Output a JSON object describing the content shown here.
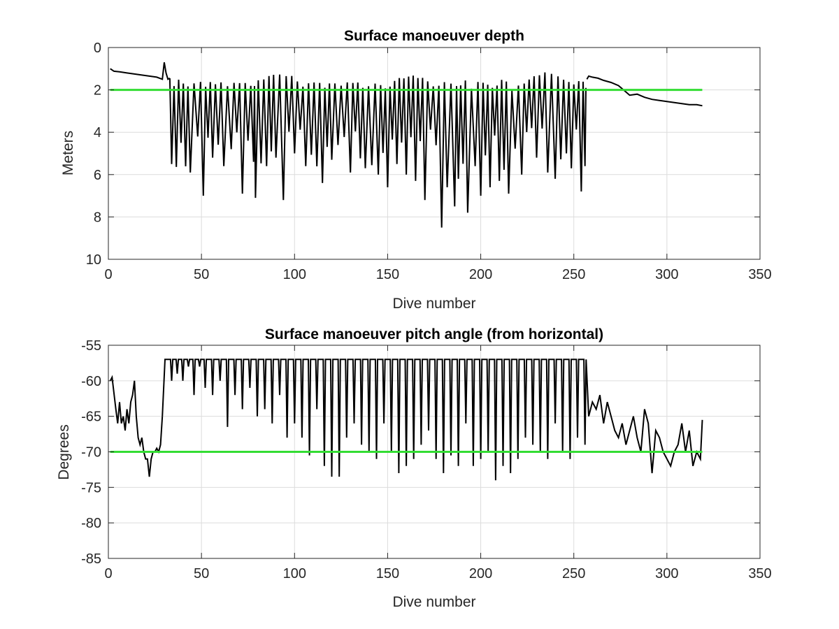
{
  "chart_data": [
    {
      "type": "line",
      "title": "Surface manoeuver depth",
      "xlabel": "Dive number",
      "ylabel": "Meters",
      "xlim": [
        0,
        350
      ],
      "ylim": [
        0,
        10
      ],
      "y_reversed": true,
      "grid": true,
      "xticks": [
        "0",
        "50",
        "100",
        "150",
        "200",
        "250",
        "300",
        "350"
      ],
      "yticks": [
        "0",
        "2",
        "4",
        "6",
        "8",
        "10"
      ],
      "threshold": {
        "value": 2,
        "x_range": [
          1,
          319
        ],
        "color": "#33dd33"
      },
      "series": [
        {
          "color": "#000000",
          "segment_1": {
            "x": [
              1,
              3,
              6,
              10,
              14,
              18,
              22,
              26,
              29,
              30,
              31,
              32,
              33
            ],
            "y": [
              1.0,
              1.12,
              1.15,
              1.2,
              1.25,
              1.3,
              1.35,
              1.4,
              1.5,
              0.7,
              1.2,
              1.5,
              1.45
            ]
          },
          "oscillation": {
            "x_start": 34,
            "x_end": 257,
            "approx_period": 3,
            "peaks_y": [
              1.6,
              1.5,
              1.6,
              1.8,
              1.6,
              1.5,
              1.7,
              1.6,
              1.5,
              1.6,
              1.7,
              1.6,
              1.5,
              1.6,
              1.8,
              1.6,
              1.5,
              1.4,
              1.3,
              1.2,
              1.1,
              1.2,
              1.3,
              1.5,
              1.6
            ],
            "troughs_y": [
              5.5,
              4.5,
              5.9,
              4.2,
              7.0,
              5.2,
              5.6,
              4.8,
              6.9,
              5.4,
              7.1,
              5.6,
              5.2,
              7.2,
              5.0,
              5.6,
              6.4,
              5.3,
              5.9,
              5.7,
              6.0,
              6.6,
              5.5,
              6.0,
              6.3,
              7.2,
              8.5,
              6.6,
              7.5,
              6.2,
              7.8,
              5.6,
              7.0,
              6.6,
              6.3,
              6.9,
              6.0,
              5.2,
              5.9,
              6.2,
              5.0,
              6.8,
              5.6
            ],
            "trough_x": [
              34,
              39,
              44,
              48,
              51,
              56,
              62,
              66,
              72,
              78,
              79,
              85,
              90,
              94,
              100,
              106,
              115,
              120,
              130,
              138,
              145,
              150,
              155,
              160,
              165,
              170,
              179,
              182,
              186,
              188,
              193,
              197,
              200,
              205,
              210,
              215,
              222,
              230,
              236,
              240,
              246,
              254,
              256
            ]
          },
          "segment_2": {
            "x": [
              257,
              258,
              260,
              263,
              266,
              270,
              274,
              278,
              280,
              284,
              288,
              292,
              296,
              300,
              304,
              308,
              312,
              316,
              319
            ],
            "y": [
              1.5,
              1.35,
              1.4,
              1.45,
              1.55,
              1.65,
              1.8,
              2.1,
              2.25,
              2.2,
              2.35,
              2.45,
              2.5,
              2.55,
              2.6,
              2.65,
              2.7,
              2.7,
              2.75
            ]
          }
        }
      ]
    },
    {
      "type": "line",
      "title": "Surface manoeuver pitch angle (from horizontal)",
      "xlabel": "Dive number",
      "ylabel": "Degrees",
      "xlim": [
        0,
        350
      ],
      "ylim": [
        -85,
        -55
      ],
      "grid": true,
      "xticks": [
        "0",
        "50",
        "100",
        "150",
        "200",
        "250",
        "300",
        "350"
      ],
      "yticks": [
        "-55",
        "-60",
        "-65",
        "-70",
        "-75",
        "-80",
        "-85"
      ],
      "threshold": {
        "value": -70,
        "x_range": [
          1,
          319
        ],
        "color": "#33dd33"
      },
      "series": [
        {
          "color": "#000000",
          "segment_1": {
            "x": [
              1,
              2,
              4,
              5,
              6,
              7,
              8,
              9,
              10,
              11,
              12,
              13,
              14,
              15,
              16,
              17,
              18,
              19,
              20,
              21,
              22,
              23,
              24,
              25,
              26,
              27,
              28,
              29
            ],
            "y": [
              -60,
              -59.5,
              -64,
              -66,
              -63,
              -66,
              -65,
              -67,
              -64,
              -66,
              -63,
              -62,
              -60,
              -65,
              -68,
              -69,
              -68,
              -70,
              -71,
              -71,
              -73.5,
              -71,
              -70,
              -70,
              -69.5,
              -70,
              -69,
              -65
            ]
          },
          "spikes": {
            "x_start": 29,
            "x_end": 258,
            "top": -55,
            "x": [
              31,
              34,
              37,
              40,
              43,
              46,
              49,
              52,
              56,
              60,
              64,
              68,
              72,
              76,
              80,
              84,
              88,
              92,
              96,
              100,
              104,
              108,
              112,
              116,
              120,
              124,
              128,
              132,
              136,
              140,
              144,
              148,
              152,
              156,
              160,
              164,
              168,
              172,
              176,
              180,
              184,
              188,
              192,
              196,
              200,
              204,
              208,
              212,
              216,
              220,
              224,
              228,
              232,
              236,
              240,
              244,
              248,
              252,
              256
            ],
            "y_min": [
              -57,
              -60,
              -59,
              -60,
              -58,
              -62,
              -58,
              -61,
              -62,
              -60,
              -66.5,
              -62,
              -64,
              -61,
              -65,
              -64,
              -66,
              -62,
              -68,
              -66,
              -68,
              -70.5,
              -64,
              -72,
              -73.5,
              -73.5,
              -68,
              -66,
              -69,
              -70,
              -71,
              -66,
              -70,
              -73,
              -72,
              -71,
              -69,
              -67,
              -71,
              -73,
              -70.5,
              -72,
              -66,
              -72,
              -71,
              -70,
              -74,
              -72,
              -73,
              -71,
              -68,
              -69,
              -70,
              -71,
              -66,
              -70,
              -71,
              -68,
              -69
            ]
          },
          "segment_2": {
            "x": [
              258,
              260,
              262,
              264,
              266,
              268,
              270,
              272,
              274,
              276,
              278,
              280,
              282,
              284,
              286,
              288,
              290,
              292,
              294,
              296,
              298,
              300,
              302,
              304,
              306,
              308,
              310,
              312,
              314,
              316,
              318,
              319
            ],
            "y": [
              -65,
              -63,
              -64,
              -62,
              -66,
              -63,
              -65,
              -67,
              -68,
              -66,
              -69,
              -67,
              -65,
              -68,
              -70,
              -64,
              -66,
              -73,
              -67,
              -68,
              -70,
              -71,
              -72,
              -70,
              -69,
              -66,
              -70,
              -67,
              -72,
              -70,
              -71,
              -65.5
            ]
          }
        }
      ]
    }
  ]
}
